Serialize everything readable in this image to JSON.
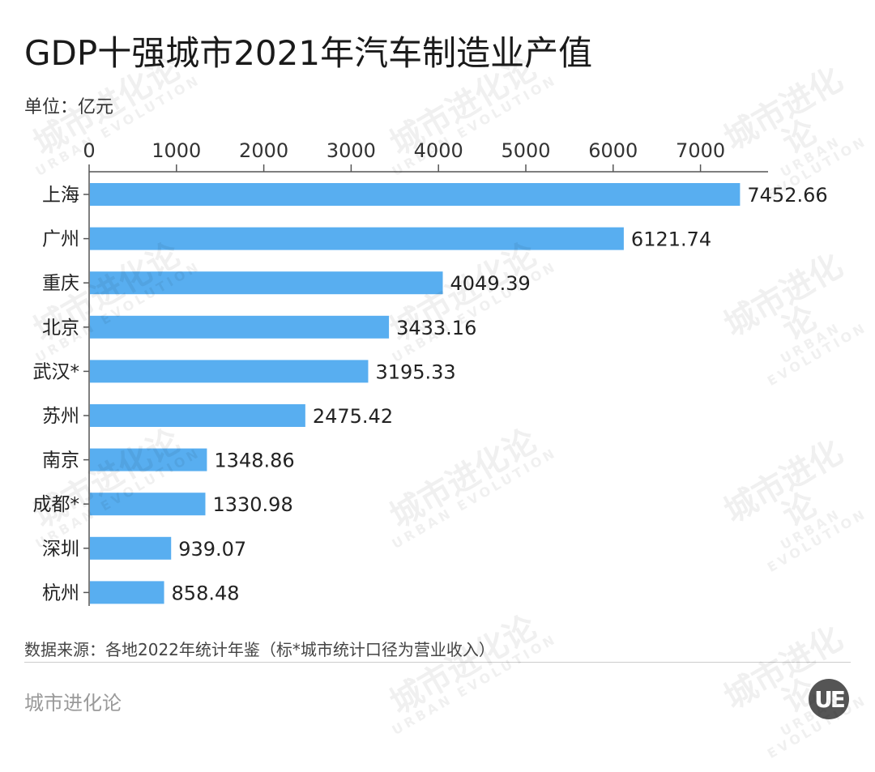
{
  "chart_data": {
    "type": "bar",
    "orientation": "horizontal",
    "title": "GDP十强城市2021年汽车制造业产值",
    "unit_label": "单位：亿元",
    "categories": [
      "上海",
      "广州",
      "重庆",
      "北京",
      "武汉*",
      "苏州",
      "南京",
      "成都*",
      "深圳",
      "杭州"
    ],
    "values": [
      7452.66,
      6121.74,
      4049.39,
      3433.16,
      3195.33,
      2475.42,
      1348.86,
      1330.98,
      939.07,
      858.48
    ],
    "value_labels": [
      "7452.66",
      "6121.74",
      "4049.39",
      "3433.16",
      "3195.33",
      "2475.42",
      "1348.86",
      "1330.98",
      "939.07",
      "858.48"
    ],
    "x_ticks": [
      "0",
      "1000",
      "2000",
      "3000",
      "4000",
      "5000",
      "6000",
      "7000"
    ],
    "xlim": [
      0,
      7800
    ],
    "xaxis_position": "top",
    "grid": false,
    "bar_color": "#58aef0"
  },
  "footer": {
    "source": "数据来源：各地2022年统计年鉴（标*城市统计口径为营业收入）",
    "brand": "城市进化论",
    "logo": "UE"
  },
  "watermark": {
    "cn": "城市进化论",
    "en": "URBAN EVOLUTION"
  }
}
